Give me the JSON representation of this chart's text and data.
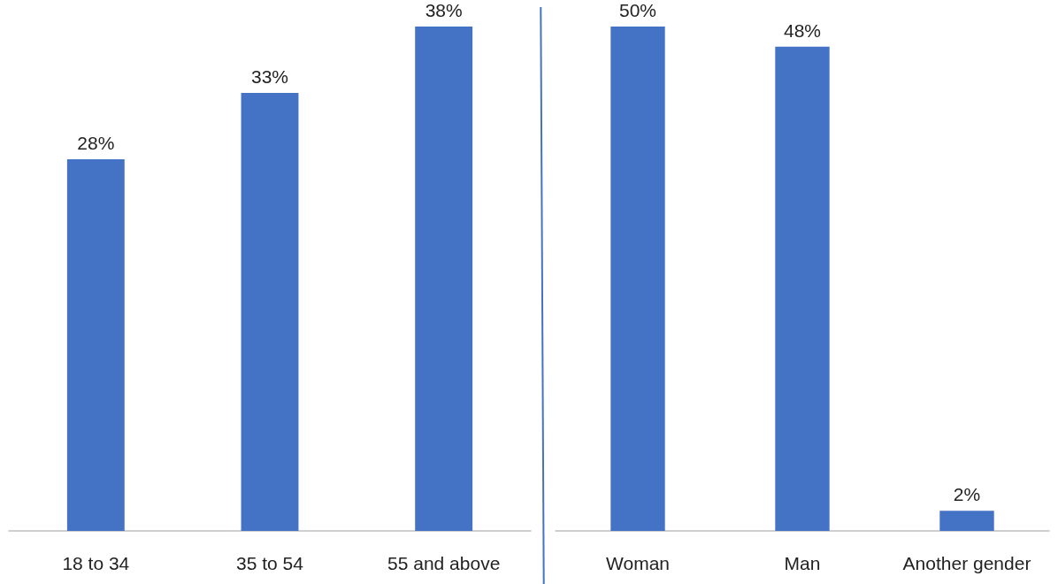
{
  "chart_data": [
    {
      "type": "bar",
      "categories": [
        "18 to 34",
        "35 to 54",
        "55 and above"
      ],
      "values": [
        28,
        33,
        38
      ],
      "value_labels": [
        "28%",
        "33%",
        "38%"
      ],
      "color": "#4472c4"
    },
    {
      "type": "bar",
      "categories": [
        "Woman",
        "Man",
        "Another gender"
      ],
      "values": [
        50,
        48,
        2
      ],
      "value_labels": [
        "50%",
        "48%",
        "2%"
      ],
      "color": "#4472c4"
    }
  ]
}
